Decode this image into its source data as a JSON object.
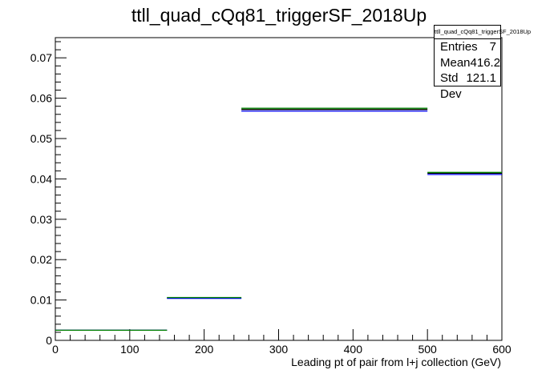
{
  "title": "ttll_quad_cQq81_triggerSF_2018Up",
  "chart_data": {
    "type": "histogram",
    "title": "ttll_quad_cQq81_triggerSF_2018Up",
    "xlabel": "Leading pt of pair from l+j collection (GeV)",
    "ylabel": "",
    "xlim": [
      0,
      600
    ],
    "ylim": [
      0,
      0.075
    ],
    "x_ticks": [
      "0",
      "100",
      "200",
      "300",
      "400",
      "500",
      "600"
    ],
    "x_tick_values": [
      0,
      100,
      200,
      300,
      400,
      500,
      600
    ],
    "y_ticks": [
      "0",
      "0.01",
      "0.02",
      "0.03",
      "0.04",
      "0.05",
      "0.06",
      "0.07"
    ],
    "y_tick_values": [
      0,
      0.01,
      0.02,
      0.03,
      0.04,
      0.05,
      0.06,
      0.07
    ],
    "bin_edges": [
      0,
      150,
      250,
      500,
      600
    ],
    "series": [
      {
        "color": "#000000",
        "values": [
          0.0025,
          0.0105,
          0.0572,
          0.0414
        ]
      },
      {
        "color": "#0000ff",
        "values": [
          0.0025,
          0.0104,
          0.0568,
          0.0411
        ]
      },
      {
        "color": "#008000",
        "values": [
          0.0025,
          0.0106,
          0.0575,
          0.0416
        ]
      }
    ]
  },
  "stats": {
    "title": "ttll_quad_cQq81_triggerSF_2018Up",
    "entries_label": "Entries",
    "entries_value": "7",
    "mean_label": "Mean",
    "mean_value": "416.2",
    "stddev_label": "Std Dev",
    "stddev_value": "121.1"
  }
}
